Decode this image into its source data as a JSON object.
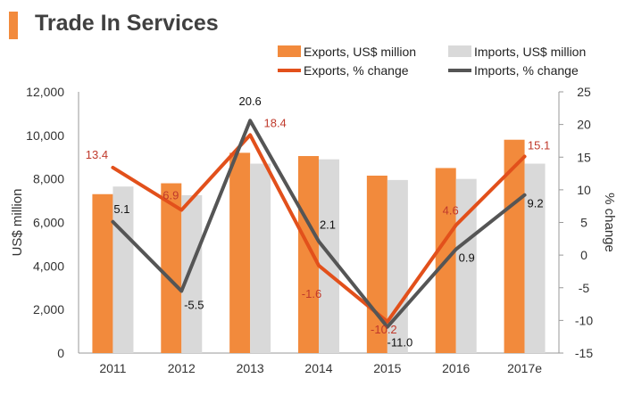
{
  "title": "Trade In Services",
  "colors": {
    "exports_bar": "#f28a3c",
    "imports_bar": "#d9d9d9",
    "exports_line": "#e2501b",
    "imports_line": "#555555",
    "accent": "#f28a3c",
    "exports_label": "#c0392b",
    "imports_label": "#111111"
  },
  "chart_data": {
    "type": "bar",
    "categories": [
      "2011",
      "2012",
      "2013",
      "2014",
      "2015",
      "2016",
      "2017e"
    ],
    "series": [
      {
        "name": "Exports, US$ million",
        "type": "bar",
        "axis": "left",
        "values": [
          7300,
          7800,
          9200,
          9050,
          8150,
          8500,
          9800
        ]
      },
      {
        "name": "Imports, US$ million",
        "type": "bar",
        "axis": "left",
        "values": [
          7650,
          7250,
          8700,
          8900,
          7950,
          8000,
          8700
        ]
      },
      {
        "name": "Exports, % change",
        "type": "line",
        "axis": "right",
        "values": [
          13.4,
          6.9,
          18.4,
          -1.6,
          -10.2,
          4.6,
          15.1
        ],
        "labels": [
          "13.4",
          "6.9",
          "18.4",
          "-1.6",
          "-10.2",
          "4.6",
          "15.1"
        ]
      },
      {
        "name": "Imports, % change",
        "type": "line",
        "axis": "right",
        "values": [
          5.1,
          -5.5,
          20.6,
          2.1,
          -11.0,
          0.9,
          9.2
        ],
        "labels": [
          "5.1",
          "-5.5",
          "20.6",
          "2.1",
          "-11.0",
          "0.9",
          "9.2"
        ]
      }
    ],
    "ylabel": "US$ million",
    "y2label": "% change",
    "ylim": [
      0,
      12000
    ],
    "y2lim": [
      -15,
      25
    ],
    "yticks": [
      "0",
      "2,000",
      "4,000",
      "6,000",
      "8,000",
      "10,000",
      "12,000"
    ],
    "y2ticks": [
      "-15",
      "-10",
      "-5",
      "0",
      "5",
      "10",
      "15",
      "20",
      "25"
    ],
    "grid": false,
    "legend": "top-right"
  }
}
